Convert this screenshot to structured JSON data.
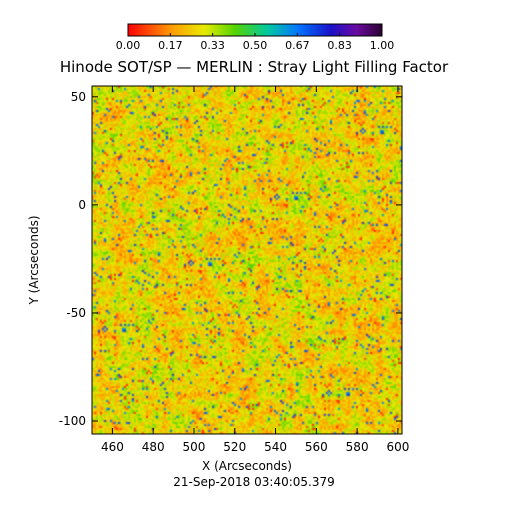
{
  "chart_data": {
    "type": "heatmap",
    "title": "Hinode SOT/SP — MERLIN : Stray Light Filling Factor",
    "xlabel": "X (Arcseconds)",
    "ylabel": "Y (Arcseconds)",
    "xlim": [
      450,
      602
    ],
    "ylim": [
      -106,
      55
    ],
    "x_ticks": [
      460,
      480,
      500,
      520,
      540,
      560,
      580,
      600
    ],
    "y_ticks": [
      50,
      0,
      -50,
      -100
    ],
    "colorbar": {
      "range": [
        0.0,
        1.0
      ],
      "tick_labels": [
        "0.00",
        "0.17",
        "0.33",
        "0.50",
        "0.67",
        "0.83",
        "1.00"
      ],
      "colormap": "rainbow reversed (red low, purple/black high)"
    },
    "dominant_value_range": [
      0.1,
      0.45
    ],
    "timestamp": "21-Sep-2018 03:40:05.379"
  }
}
